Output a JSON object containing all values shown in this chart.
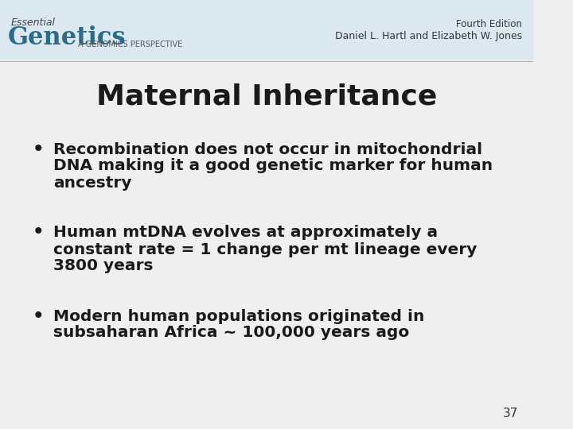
{
  "title": "Maternal Inheritance",
  "bullet1_line1": "Recombination does not occur in mitochondrial",
  "bullet1_line2": "DNA making it a good genetic marker for human",
  "bullet1_line3": "ancestry",
  "bullet2_line1": "Human mtDNA evolves at approximately a",
  "bullet2_line2": "constant rate = 1 change per mt lineage every",
  "bullet2_line3": "3800 years",
  "bullet3_line1": "Modern human populations originated in",
  "bullet3_line2": "subsaharan Africa ~ 100,000 years ago",
  "page_number": "37",
  "header_left_essential": "Essential",
  "header_left_genetics": "Genetics",
  "header_left_sub": "A GENOMICS PERSPECTIVE",
  "header_right_edition": "Fourth Edition",
  "header_right_authors": "Daniel L. Hartl and Elizabeth W. Jones",
  "bg_color": "#efefef",
  "header_bg": "#dce8f0",
  "title_color": "#1a1a1a",
  "body_color": "#1a1a1a",
  "genetics_color": "#2e6b8a",
  "header_line_color": "#999999",
  "title_fontsize": 26,
  "bullet_fontsize": 14.5,
  "page_num_fontsize": 11
}
